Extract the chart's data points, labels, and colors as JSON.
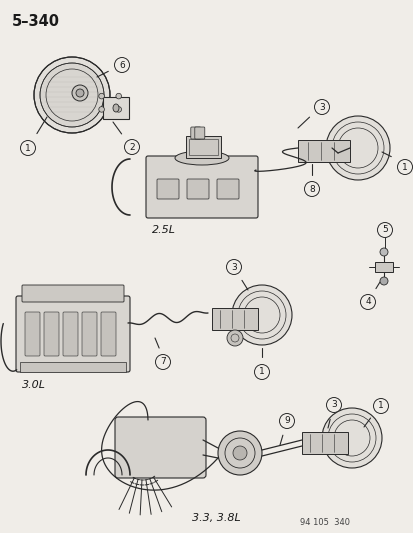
{
  "title": "5–340",
  "bg_color": "#f0ede8",
  "line_color": "#2a2a2a",
  "text_color": "#1a1a1a",
  "footer": "94 105  340",
  "label_25L": "2.5L",
  "label_30L": "3.0L",
  "label_33L": "3.3, 3.8L",
  "figsize": [
    4.14,
    5.33
  ],
  "dpi": 100
}
